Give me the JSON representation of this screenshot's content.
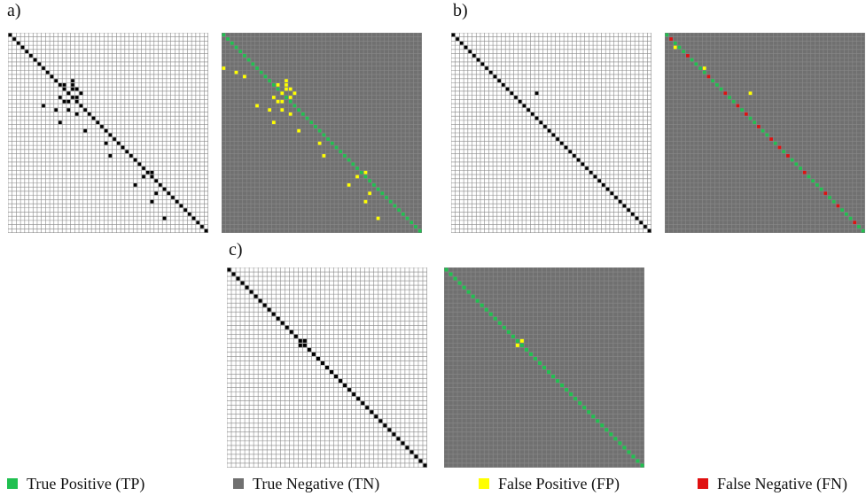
{
  "panels": [
    {
      "label": "a)",
      "n": 48,
      "diag_from": 0,
      "diag_to": 47,
      "extras": [
        [
          11,
          15
        ],
        [
          12,
          15
        ],
        [
          12,
          13
        ],
        [
          13,
          15
        ],
        [
          13,
          16
        ],
        [
          14,
          14
        ],
        [
          14,
          17
        ],
        [
          15,
          12
        ],
        [
          15,
          16
        ],
        [
          16,
          13
        ],
        [
          16,
          14
        ],
        [
          17,
          8
        ],
        [
          18,
          11
        ],
        [
          18,
          14
        ],
        [
          19,
          16
        ],
        [
          21,
          12
        ],
        [
          23,
          18
        ],
        [
          26,
          23
        ],
        [
          29,
          24
        ],
        [
          33,
          34
        ],
        [
          34,
          32
        ],
        [
          36,
          30
        ],
        [
          38,
          35
        ],
        [
          40,
          34
        ],
        [
          44,
          37
        ]
      ],
      "fn": [],
      "fp_extra": [
        [
          8,
          0
        ],
        [
          9,
          3
        ],
        [
          10,
          5
        ]
      ]
    },
    {
      "label": "b)",
      "n": 48,
      "diag_from": 0,
      "diag_to": 47,
      "extras": [
        [
          14,
          20
        ]
      ],
      "fn": [
        1,
        5,
        10,
        14,
        17,
        19,
        22,
        25,
        27,
        29,
        33,
        38,
        41,
        45
      ],
      "fp_extra": [
        [
          3,
          2
        ],
        [
          8,
          9
        ]
      ]
    },
    {
      "label": "c)",
      "n": 45,
      "diag_from": 0,
      "diag_to": 44,
      "extras": [
        [
          16,
          17
        ],
        [
          17,
          16
        ]
      ],
      "fn": [],
      "fp_extra": []
    }
  ],
  "legend": [
    {
      "label": "True Positive (TP)",
      "color": "#20c050"
    },
    {
      "label": "True Negative (TN)",
      "color": "#707070"
    },
    {
      "label": "False Positive (FP)",
      "color": "#ffff00"
    },
    {
      "label": "False Negative (FN)",
      "color": "#e01010"
    }
  ]
}
